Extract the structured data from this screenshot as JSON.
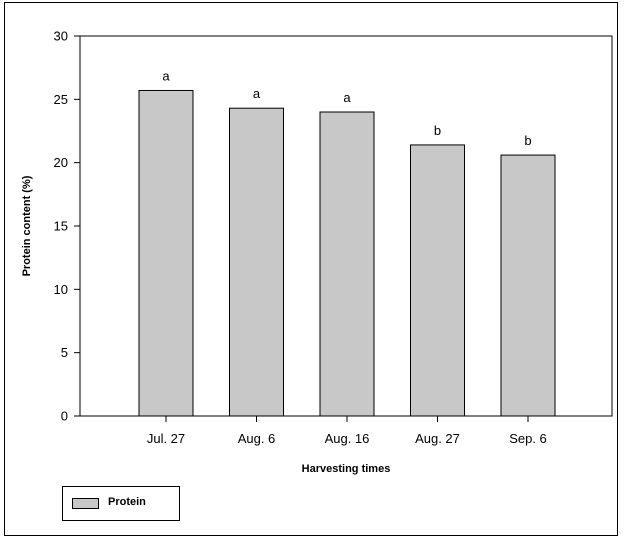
{
  "chart_data": {
    "type": "bar",
    "title": "",
    "xlabel": "Harvesting times",
    "ylabel": "Protein content (%)",
    "categories": [
      "Jul. 27",
      "Aug. 6",
      "Aug. 16",
      "Aug. 27",
      "Sep. 6"
    ],
    "series": [
      {
        "name": "Protein",
        "values": [
          25.7,
          24.3,
          24.0,
          21.4,
          20.6
        ],
        "labels": [
          "a",
          "a",
          "a",
          "b",
          "b"
        ],
        "color": "#c8c8c8"
      }
    ],
    "ylim": [
      0,
      30
    ],
    "yticks": [
      "0",
      "5",
      "10",
      "15",
      "20",
      "25",
      "30"
    ],
    "grid": false,
    "legend_position": "bottom-left"
  }
}
